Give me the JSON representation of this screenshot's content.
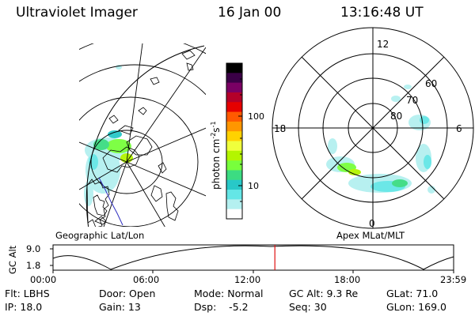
{
  "header": {
    "instrument": "Ultraviolet Imager",
    "date": "16 Jan 00",
    "time": "13:16:48 UT"
  },
  "colorbar": {
    "unit_main": "photon cm",
    "unit_sup1": "-2",
    "unit_mid": "s",
    "unit_sup2": "-1",
    "ticks": [
      "100",
      "10"
    ],
    "colors": [
      "#000000",
      "#3a0046",
      "#7a0064",
      "#b4002a",
      "#e60000",
      "#ff5a00",
      "#ff9600",
      "#ffd200",
      "#f0ff3c",
      "#b4f500",
      "#78ff3c",
      "#3cdc82",
      "#28c8c8",
      "#64e6e6",
      "#b4f0f0",
      "#ffffff"
    ]
  },
  "left_panel": {
    "caption": "Geographic Lat/Lon"
  },
  "right_panel": {
    "caption": "Apex MLat/MLT",
    "mlt_labels": [
      "12",
      "18",
      "6",
      "0"
    ],
    "lat_labels": [
      "60",
      "70",
      "80"
    ]
  },
  "timeline": {
    "ylabel": "GC Alt",
    "yticks": [
      "9.0",
      "1.8"
    ],
    "xticks": [
      "00:00",
      "06:00",
      "12:00",
      "18:00",
      "23:59"
    ],
    "marker_time_hours": 13.28,
    "marker_color": "#e01010"
  },
  "status": {
    "filter": "Flt: LBHS",
    "door": "Door: Open",
    "mode": "Mode: Normal",
    "gc_alt": "GC Alt: 9.3 Re",
    "glat": "GLat:  71.0",
    "ip": "IP: 18.0",
    "gain": "Gain: 13",
    "dsp": "Dsp:    -5.2",
    "seq": "Seq: 30",
    "glon": "GLon: 169.0"
  }
}
